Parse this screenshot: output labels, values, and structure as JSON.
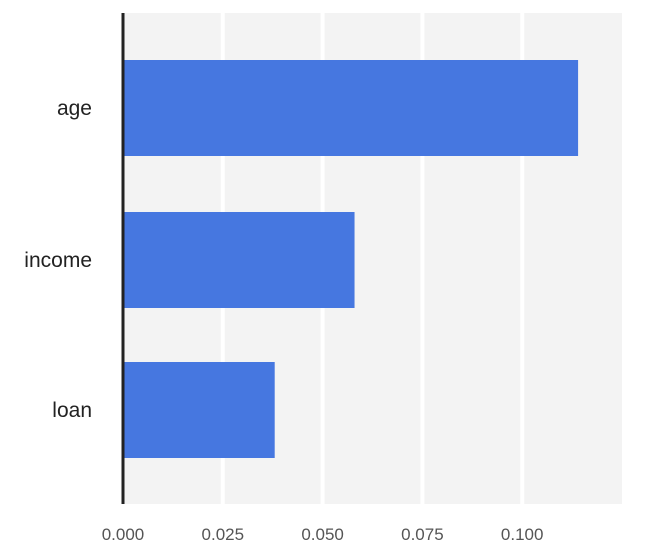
{
  "chart_data": {
    "type": "bar",
    "orientation": "horizontal",
    "categories": [
      "age",
      "income",
      "loan"
    ],
    "values": [
      0.114,
      0.058,
      0.038
    ],
    "xlim": [
      0.0,
      0.125
    ],
    "xticks": [
      "0.000",
      "0.025",
      "0.050",
      "0.075",
      "0.100"
    ],
    "xtick_values": [
      0.0,
      0.025,
      0.05,
      0.075,
      0.1
    ],
    "grid": true,
    "legend": "none",
    "title": "",
    "xlabel": "",
    "ylabel": "",
    "colors": {
      "bar": "#4677e0",
      "plot_background": "#f3f3f3",
      "grid": "#ffffff",
      "axis": "#222222"
    }
  }
}
